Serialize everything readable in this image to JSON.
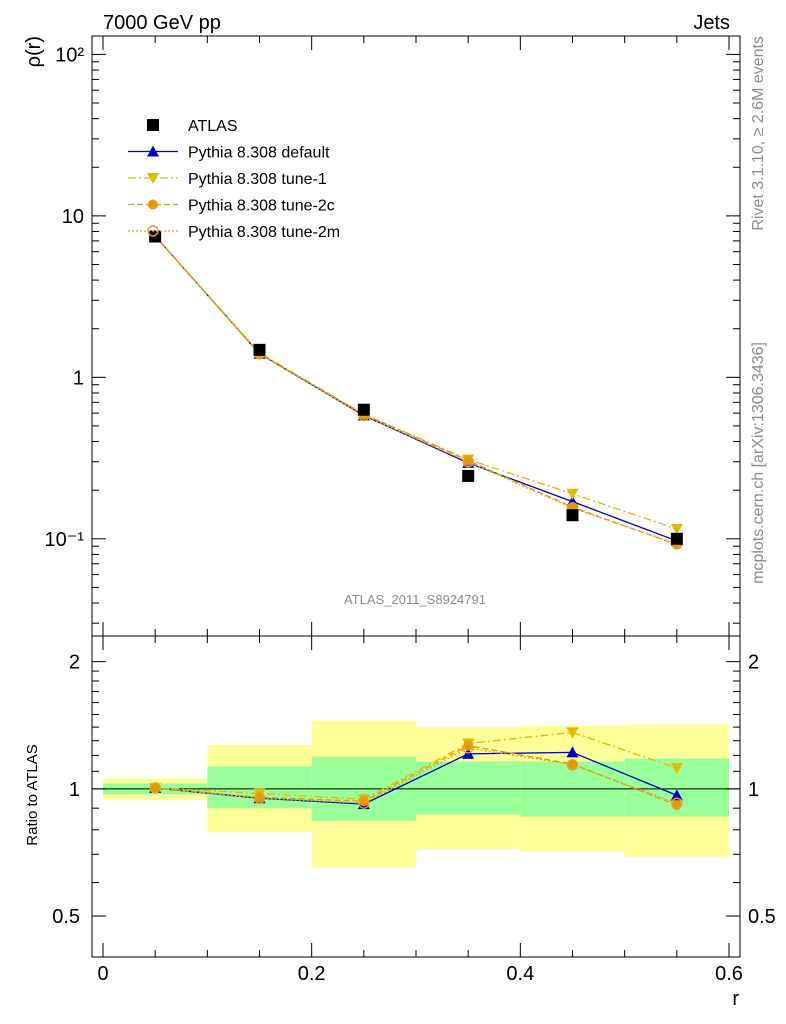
{
  "header": {
    "left": "7000 GeV pp",
    "right": "Jets"
  },
  "side_text": {
    "top": "Rivet 3.1.10, ≥ 2.6M events",
    "bottom": "mcplots.cern.ch [arXiv:1306.3436]"
  },
  "analysis_label": "ATLAS_2011_S8924791",
  "chart_data": [
    {
      "type": "line",
      "ylabel": "ρ(r)",
      "xlabel": "r",
      "xlim": [
        0,
        0.6
      ],
      "ylim": [
        0.025,
        130
      ],
      "yscale": "log",
      "x_ticks": [
        "0",
        "0.2",
        "0.4",
        "0.6"
      ],
      "y_ticks": [
        "10⁻¹",
        "1",
        "10",
        "10²"
      ],
      "legend_position": "top-left",
      "x": [
        0.05,
        0.15,
        0.25,
        0.35,
        0.45,
        0.55
      ],
      "series": [
        {
          "name": "ATLAS",
          "values": [
            7.45,
            1.48,
            0.63,
            0.245,
            0.14,
            0.1
          ],
          "color": "#000000",
          "marker": "square"
        },
        {
          "name": "Pythia 8.308 default",
          "values": [
            7.5,
            1.4,
            0.58,
            0.295,
            0.17,
            0.097
          ],
          "color": "#0000cc",
          "marker": "triangle-up",
          "line": "solid"
        },
        {
          "name": "Pythia 8.308 tune-1",
          "values": [
            7.5,
            1.42,
            0.59,
            0.31,
            0.19,
            0.115
          ],
          "color": "#e6b800",
          "marker": "triangle-down",
          "line": "dash-dot"
        },
        {
          "name": "Pythia 8.308 tune-2c",
          "values": [
            7.5,
            1.4,
            0.59,
            0.305,
            0.157,
            0.092
          ],
          "color": "#e69a00",
          "marker": "circle",
          "line": "dashed"
        },
        {
          "name": "Pythia 8.308 tune-2m",
          "values": [
            7.5,
            1.4,
            0.58,
            0.3,
            0.155,
            0.093
          ],
          "color": "#e6a020",
          "marker": "open-circle",
          "line": "dotted"
        }
      ]
    },
    {
      "type": "line",
      "ylabel": "Ratio to ATLAS",
      "xlabel": "r",
      "xlim": [
        0,
        0.6
      ],
      "ylim": [
        0.4,
        2.3
      ],
      "yscale": "log",
      "y_ticks": [
        "0.5",
        "1",
        "2"
      ],
      "x": [
        0.05,
        0.15,
        0.25,
        0.35,
        0.45,
        0.55
      ],
      "bands": {
        "x_edges": [
          0.0,
          0.1,
          0.2,
          0.3,
          0.4,
          0.5,
          0.6
        ],
        "inner": [
          [
            0.97,
            1.03
          ],
          [
            0.9,
            1.13
          ],
          [
            0.84,
            1.19
          ],
          [
            0.87,
            1.16
          ],
          [
            0.86,
            1.16
          ],
          [
            0.86,
            1.18
          ]
        ],
        "outer": [
          [
            0.94,
            1.06
          ],
          [
            0.79,
            1.27
          ],
          [
            0.65,
            1.45
          ],
          [
            0.72,
            1.4
          ],
          [
            0.71,
            1.41
          ],
          [
            0.69,
            1.42
          ]
        ],
        "inner_color": "#99ff99",
        "outer_color": "#ffff99"
      },
      "series": [
        {
          "name": "Pythia 8.308 default",
          "values": [
            1.005,
            0.95,
            0.92,
            1.21,
            1.22,
            0.965
          ],
          "color": "#0000cc"
        },
        {
          "name": "Pythia 8.308 tune-1",
          "values": [
            1.005,
            0.975,
            0.945,
            1.28,
            1.36,
            1.12
          ],
          "color": "#e6b800"
        },
        {
          "name": "Pythia 8.308 tune-2c",
          "values": [
            1.005,
            0.955,
            0.935,
            1.265,
            1.145,
            0.915
          ],
          "color": "#e69a00"
        },
        {
          "name": "Pythia 8.308 tune-2m",
          "values": [
            1.005,
            0.95,
            0.925,
            1.25,
            1.14,
            0.925
          ],
          "color": "#e6a020"
        }
      ]
    }
  ]
}
